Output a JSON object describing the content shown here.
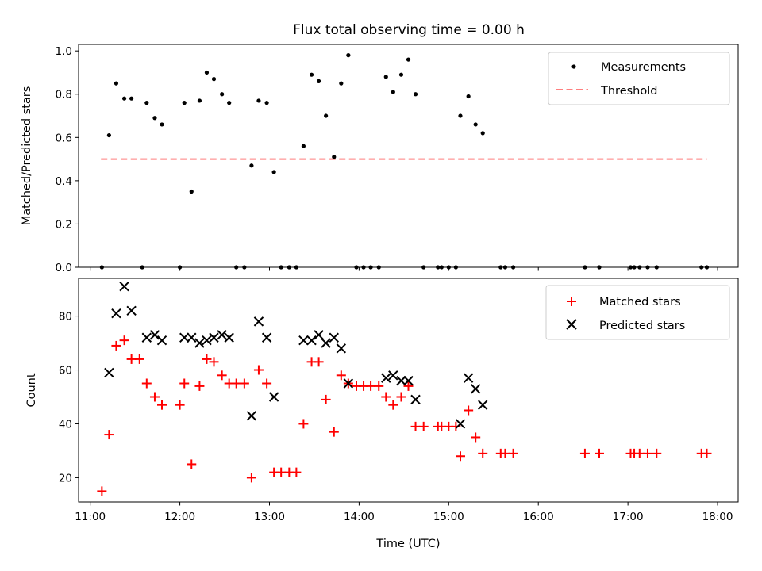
{
  "chart_data": [
    {
      "type": "scatter",
      "title": "Flux total observing time = 0.00 h",
      "ylabel": "Matched/Predicted stars",
      "xlabel": "",
      "xlim_hours": [
        10.87,
        18.23
      ],
      "ylim": [
        0,
        1.03
      ],
      "yticks": [
        0.0,
        0.2,
        0.4,
        0.6,
        0.8,
        1.0
      ],
      "ytick_labels": [
        "0.0",
        "0.2",
        "0.4",
        "0.6",
        "0.8",
        "1.0"
      ],
      "xticks_hours": [
        11,
        12,
        13,
        14,
        15,
        16,
        17,
        18
      ],
      "legend_position": "upper right",
      "legend": [
        "Measurements",
        "Threshold"
      ],
      "threshold": {
        "value": 0.5,
        "x_start": 11.12,
        "x_end": 17.88,
        "color": "#ff7f7f",
        "style": "dashed"
      },
      "series": [
        {
          "name": "Measurements",
          "color": "#000000",
          "marker": "dot",
          "points": [
            [
              11.13,
              0.0
            ],
            [
              11.21,
              0.61
            ],
            [
              11.29,
              0.85
            ],
            [
              11.38,
              0.78
            ],
            [
              11.46,
              0.78
            ],
            [
              11.58,
              0.0
            ],
            [
              11.63,
              0.76
            ],
            [
              11.72,
              0.69
            ],
            [
              11.8,
              0.66
            ],
            [
              12.0,
              0.0
            ],
            [
              12.05,
              0.76
            ],
            [
              12.13,
              0.35
            ],
            [
              12.22,
              0.77
            ],
            [
              12.3,
              0.9
            ],
            [
              12.38,
              0.87
            ],
            [
              12.47,
              0.8
            ],
            [
              12.55,
              0.76
            ],
            [
              12.63,
              0.0
            ],
            [
              12.72,
              0.0
            ],
            [
              12.8,
              0.47
            ],
            [
              12.88,
              0.77
            ],
            [
              12.97,
              0.76
            ],
            [
              13.05,
              0.44
            ],
            [
              13.13,
              0.0
            ],
            [
              13.22,
              0.0
            ],
            [
              13.3,
              0.0
            ],
            [
              13.38,
              0.56
            ],
            [
              13.47,
              0.89
            ],
            [
              13.55,
              0.86
            ],
            [
              13.63,
              0.7
            ],
            [
              13.72,
              0.51
            ],
            [
              13.8,
              0.85
            ],
            [
              13.88,
              0.98
            ],
            [
              13.97,
              0.0
            ],
            [
              14.05,
              0.0
            ],
            [
              14.13,
              0.0
            ],
            [
              14.22,
              0.0
            ],
            [
              14.3,
              0.88
            ],
            [
              14.38,
              0.81
            ],
            [
              14.47,
              0.89
            ],
            [
              14.55,
              0.96
            ],
            [
              14.63,
              0.8
            ],
            [
              14.72,
              0.0
            ],
            [
              14.88,
              0.0
            ],
            [
              14.92,
              0.0
            ],
            [
              15.0,
              0.0
            ],
            [
              15.08,
              0.0
            ],
            [
              15.13,
              0.7
            ],
            [
              15.22,
              0.79
            ],
            [
              15.3,
              0.66
            ],
            [
              15.38,
              0.62
            ],
            [
              15.58,
              0.0
            ],
            [
              15.63,
              0.0
            ],
            [
              15.72,
              0.0
            ],
            [
              16.52,
              0.0
            ],
            [
              16.68,
              0.0
            ],
            [
              17.03,
              0.0
            ],
            [
              17.07,
              0.0
            ],
            [
              17.13,
              0.0
            ],
            [
              17.22,
              0.0
            ],
            [
              17.32,
              0.0
            ],
            [
              17.82,
              0.0
            ],
            [
              17.88,
              0.0
            ]
          ]
        }
      ]
    },
    {
      "type": "scatter",
      "title": "",
      "ylabel": "Count",
      "xlabel": "Time (UTC)",
      "xlim_hours": [
        10.87,
        18.23
      ],
      "ylim": [
        11,
        94
      ],
      "yticks": [
        20,
        40,
        60,
        80
      ],
      "ytick_labels": [
        "20",
        "40",
        "60",
        "80"
      ],
      "xticks_hours": [
        11,
        12,
        13,
        14,
        15,
        16,
        17,
        18
      ],
      "xtick_labels": [
        "11:00",
        "12:00",
        "13:00",
        "14:00",
        "15:00",
        "16:00",
        "17:00",
        "18:00"
      ],
      "legend_position": "upper right",
      "legend": [
        "Matched stars",
        "Predicted stars"
      ],
      "series": [
        {
          "name": "Matched stars",
          "color": "#ff0000",
          "marker": "plus",
          "points": [
            [
              11.13,
              15
            ],
            [
              11.21,
              36
            ],
            [
              11.29,
              69
            ],
            [
              11.38,
              71
            ],
            [
              11.46,
              64
            ],
            [
              11.55,
              64
            ],
            [
              11.63,
              55
            ],
            [
              11.72,
              50
            ],
            [
              11.8,
              47
            ],
            [
              12.0,
              47
            ],
            [
              12.05,
              55
            ],
            [
              12.13,
              25
            ],
            [
              12.22,
              54
            ],
            [
              12.3,
              64
            ],
            [
              12.38,
              63
            ],
            [
              12.47,
              58
            ],
            [
              12.55,
              55
            ],
            [
              12.63,
              55
            ],
            [
              12.72,
              55
            ],
            [
              12.8,
              20
            ],
            [
              12.88,
              60
            ],
            [
              12.97,
              55
            ],
            [
              13.05,
              22
            ],
            [
              13.13,
              22
            ],
            [
              13.22,
              22
            ],
            [
              13.3,
              22
            ],
            [
              13.38,
              40
            ],
            [
              13.47,
              63
            ],
            [
              13.55,
              63
            ],
            [
              13.63,
              49
            ],
            [
              13.72,
              37
            ],
            [
              13.8,
              58
            ],
            [
              13.88,
              55
            ],
            [
              13.97,
              54
            ],
            [
              14.05,
              54
            ],
            [
              14.13,
              54
            ],
            [
              14.22,
              54
            ],
            [
              14.3,
              50
            ],
            [
              14.38,
              47
            ],
            [
              14.47,
              50
            ],
            [
              14.55,
              54
            ],
            [
              14.63,
              39
            ],
            [
              14.72,
              39
            ],
            [
              14.88,
              39
            ],
            [
              14.92,
              39
            ],
            [
              15.0,
              39
            ],
            [
              15.08,
              39
            ],
            [
              15.13,
              28
            ],
            [
              15.22,
              45
            ],
            [
              15.3,
              35
            ],
            [
              15.38,
              29
            ],
            [
              15.58,
              29
            ],
            [
              15.63,
              29
            ],
            [
              15.72,
              29
            ],
            [
              16.52,
              29
            ],
            [
              16.68,
              29
            ],
            [
              17.03,
              29
            ],
            [
              17.07,
              29
            ],
            [
              17.13,
              29
            ],
            [
              17.22,
              29
            ],
            [
              17.32,
              29
            ],
            [
              17.82,
              29
            ],
            [
              17.88,
              29
            ]
          ]
        },
        {
          "name": "Predicted stars",
          "color": "#000000",
          "marker": "x",
          "points": [
            [
              11.21,
              59
            ],
            [
              11.29,
              81
            ],
            [
              11.38,
              91
            ],
            [
              11.46,
              82
            ],
            [
              11.63,
              72
            ],
            [
              11.72,
              73
            ],
            [
              11.8,
              71
            ],
            [
              12.05,
              72
            ],
            [
              12.13,
              72
            ],
            [
              12.22,
              70
            ],
            [
              12.3,
              71
            ],
            [
              12.38,
              72
            ],
            [
              12.47,
              73
            ],
            [
              12.55,
              72
            ],
            [
              12.8,
              43
            ],
            [
              12.88,
              78
            ],
            [
              12.97,
              72
            ],
            [
              13.05,
              50
            ],
            [
              13.38,
              71
            ],
            [
              13.47,
              71
            ],
            [
              13.55,
              73
            ],
            [
              13.63,
              70
            ],
            [
              13.72,
              72
            ],
            [
              13.8,
              68
            ],
            [
              13.88,
              55
            ],
            [
              14.3,
              57
            ],
            [
              14.38,
              58
            ],
            [
              14.47,
              56
            ],
            [
              14.55,
              56
            ],
            [
              14.63,
              49
            ],
            [
              15.13,
              40
            ],
            [
              15.22,
              57
            ],
            [
              15.3,
              53
            ],
            [
              15.38,
              47
            ]
          ]
        }
      ]
    }
  ]
}
